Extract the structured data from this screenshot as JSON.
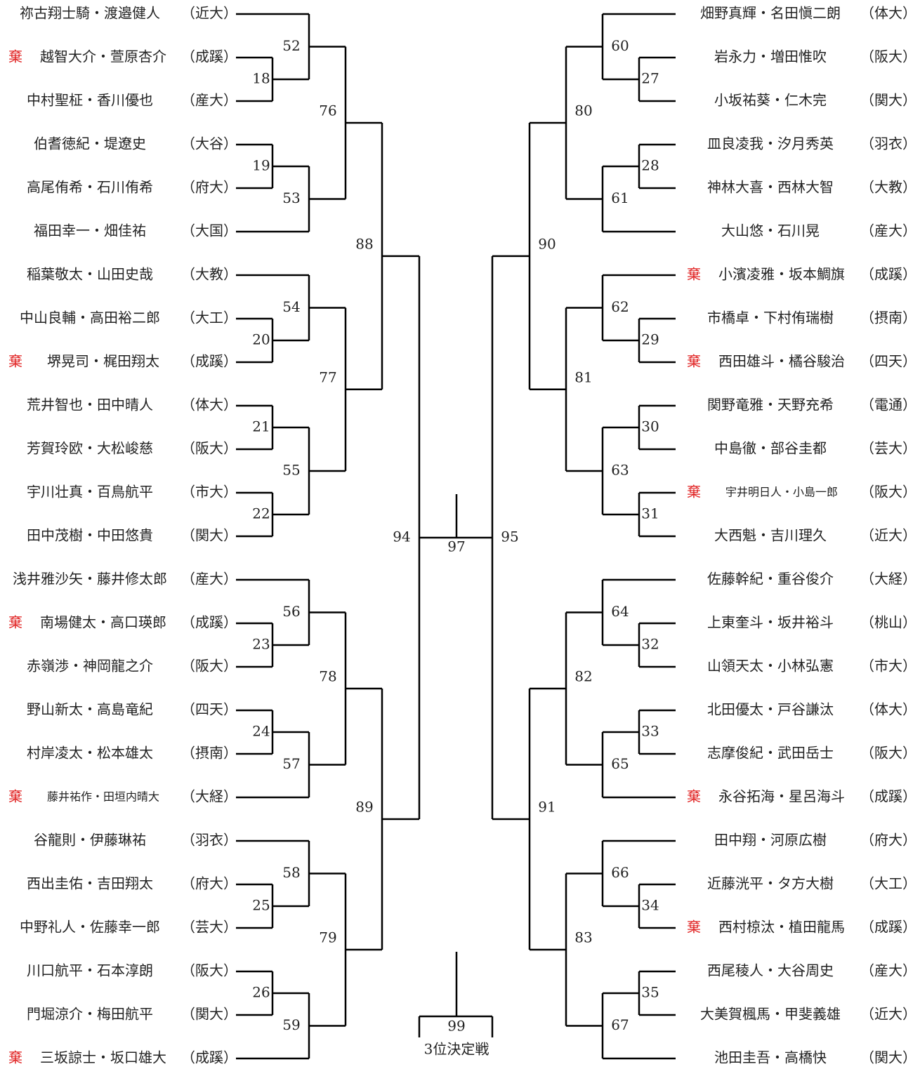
{
  "left": {
    "entries": [
      {
        "name": "祢古翔士騎・渡邉健人",
        "school": "（近大）"
      },
      {
        "mark": "棄",
        "name": "越智大介・萱原杏介",
        "school": "（成蹊）"
      },
      {
        "name": "中村聖柾・香川優也",
        "school": "（産大）"
      },
      {
        "name": "伯耆徳紀・堤遼史",
        "school": "（大谷）"
      },
      {
        "name": "高尾侑希・石川侑希",
        "school": "（府大）"
      },
      {
        "name": "福田幸一・畑佳祐",
        "school": "（大国）"
      },
      {
        "name": "稲葉敬太・山田史哉",
        "school": "（大教）"
      },
      {
        "name": "中山良輔・高田裕二郎",
        "school": "（大工）"
      },
      {
        "mark": "棄",
        "name": "堺晃司・梶田翔太",
        "school": "（成蹊）"
      },
      {
        "name": "荒井智也・田中晴人",
        "school": "（体大）"
      },
      {
        "name": "芳賀玲欧・大松峻慈",
        "school": "（阪大）"
      },
      {
        "name": "宇川壮真・百鳥航平",
        "school": "（市大）"
      },
      {
        "name": "田中茂樹・中田悠貴",
        "school": "（関大）"
      },
      {
        "name": "浅井雅沙矢・藤井修太郎",
        "school": "（産大）"
      },
      {
        "mark": "棄",
        "name": "南場健太・高口瑛郎",
        "school": "（成蹊）"
      },
      {
        "name": "赤嶺渉・神岡龍之介",
        "school": "（阪大）"
      },
      {
        "name": "野山新太・高島竜紀",
        "school": "（四天）"
      },
      {
        "name": "村岸凌太・松本雄太",
        "school": "（摂南）"
      },
      {
        "mark": "棄",
        "name": "藤井祐作・田垣内晴大",
        "school": "（大経）"
      },
      {
        "name": "谷龍則・伊藤琳祐",
        "school": "（羽衣）"
      },
      {
        "name": "西出圭佑・吉田翔太",
        "school": "（府大）"
      },
      {
        "name": "中野礼人・佐藤幸一郎",
        "school": "（芸大）"
      },
      {
        "name": "川口航平・石本淳朗",
        "school": "（阪大）"
      },
      {
        "name": "門堀涼介・梅田航平",
        "school": "（関大）"
      },
      {
        "mark": "棄",
        "name": "三坂諒士・坂口雄大",
        "school": "（成蹊）"
      }
    ],
    "matches": [
      18,
      19,
      20,
      21,
      22,
      23,
      24,
      25,
      26,
      52,
      53,
      54,
      55,
      56,
      57,
      58,
      59,
      76,
      77,
      78,
      79,
      88,
      89,
      94
    ]
  },
  "right": {
    "entries": [
      {
        "name": "畑野真輝・名田愼二朗",
        "school": "（体大）"
      },
      {
        "name": "岩永力・増田惟吹",
        "school": "（阪大）"
      },
      {
        "name": "小坂祐葵・仁木完",
        "school": "（関大）"
      },
      {
        "name": "皿良凌我・汐月秀英",
        "school": "（羽衣）"
      },
      {
        "name": "神林大喜・西林大智",
        "school": "（大教）"
      },
      {
        "name": "大山悠・石川晃",
        "school": "（産大）"
      },
      {
        "mark": "棄",
        "name": "小濱凌雅・坂本鯛旗",
        "school": "（成蹊）"
      },
      {
        "name": "市橋卓・下村侑瑞樹",
        "school": "（摂南）"
      },
      {
        "mark": "棄",
        "name": "西田雄斗・橘谷駿治",
        "school": "（四天）"
      },
      {
        "name": "関野竜雅・天野充希",
        "school": "（電通）"
      },
      {
        "name": "中島徹・部谷圭都",
        "school": "（芸大）"
      },
      {
        "mark": "棄",
        "name": "宇井明日人・小島一郎",
        "school": "（阪大）"
      },
      {
        "name": "大西魁・吉川理久",
        "school": "（近大）"
      },
      {
        "name": "佐藤幹紀・重谷俊介",
        "school": "（大経）"
      },
      {
        "name": "上東奎斗・坂井裕斗",
        "school": "（桃山）"
      },
      {
        "name": "山領天太・小林弘憲",
        "school": "（市大）"
      },
      {
        "name": "北田優太・戸谷謙汰",
        "school": "（体大）"
      },
      {
        "name": "志摩俊紀・武田岳士",
        "school": "（阪大）"
      },
      {
        "mark": "棄",
        "name": "永谷拓海・星呂海斗",
        "school": "（成蹊）"
      },
      {
        "name": "田中翔・河原広樹",
        "school": "（府大）"
      },
      {
        "name": "近藤洸平・タ方大樹",
        "school": "（大工）"
      },
      {
        "mark": "棄",
        "name": "西村椋汰・植田龍馬",
        "school": "（成蹊）"
      },
      {
        "name": "西尾稜人・大谷周史",
        "school": "（産大）"
      },
      {
        "name": "大美賀楓馬・甲斐義雄",
        "school": "（近大）"
      },
      {
        "name": "池田圭吾・高橋快",
        "school": "（関大）"
      }
    ],
    "matches": [
      27,
      28,
      29,
      30,
      31,
      32,
      33,
      34,
      35,
      60,
      61,
      62,
      63,
      64,
      65,
      66,
      67,
      80,
      81,
      82,
      83,
      90,
      91,
      95
    ]
  },
  "final": {
    "label": 97
  },
  "third_place": {
    "label": 99,
    "title": "3位決定戦"
  }
}
